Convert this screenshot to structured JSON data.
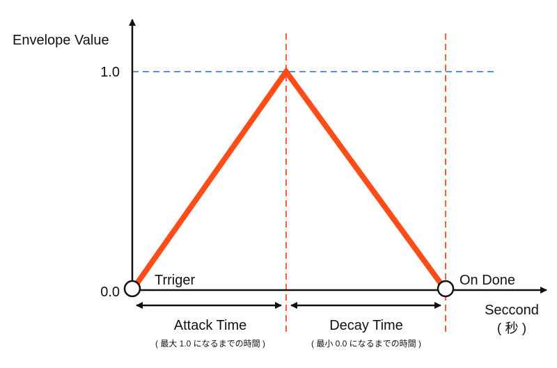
{
  "diagram": {
    "y_axis_label": "Envelope Value",
    "x_axis_label": "Seccond",
    "x_axis_unit": "( 秒 )",
    "tick_one": "1.0",
    "tick_zero": "0.0",
    "trigger_label": "Trriger",
    "done_label": "On Done",
    "attack": {
      "label": "Attack Time",
      "note": "( 最大 1.0 になるまでの時間 )"
    },
    "decay": {
      "label": "Decay Time",
      "note": "( 最小 0.0 になるまでの時間 )"
    }
  },
  "colors": {
    "envelope_line": "#ff4d1a",
    "peak_guide": "#4a90ff",
    "phase_guides": "#ff5a3a",
    "axes": "#111111"
  }
}
